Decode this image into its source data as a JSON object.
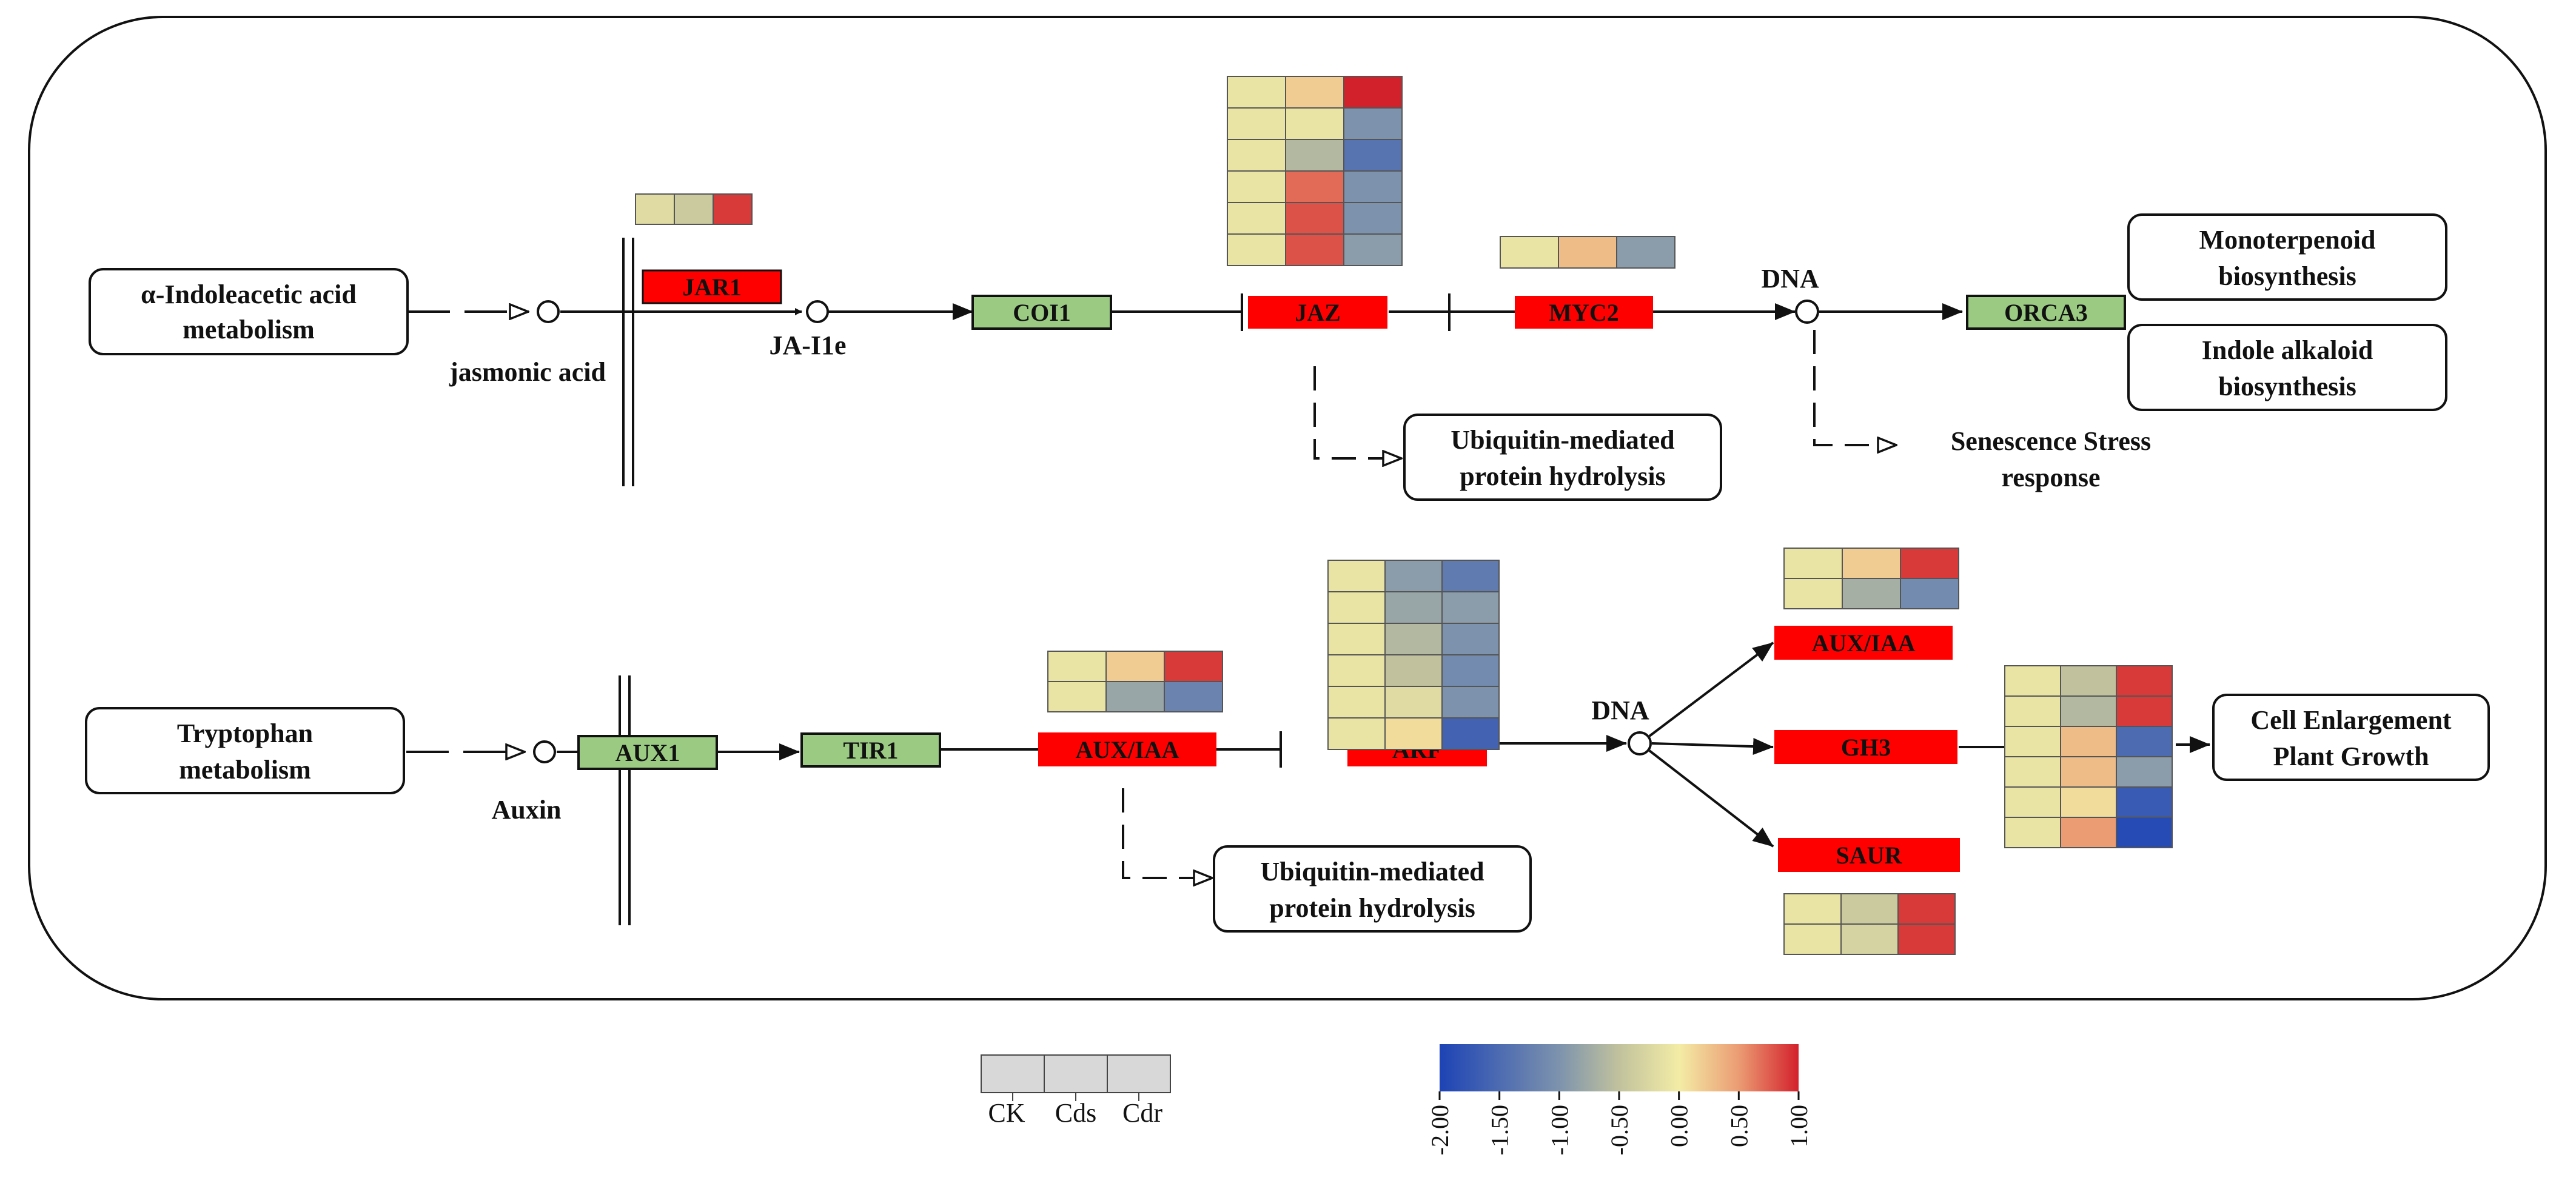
{
  "jasmonate": {
    "precursor": [
      "α-Indoleacetic acid",
      "metabolism"
    ],
    "compound_1": "jasmonic acid",
    "compound_2": "JA-I1e",
    "dna": "DNA",
    "genes": {
      "jar1": "JAR1",
      "coi1": "COI1",
      "jaz": "JAZ",
      "myc2": "MYC2",
      "orca3": "ORCA3"
    },
    "outputs": {
      "monoterpenoid": [
        "Monoterpenoid",
        "biosynthesis"
      ],
      "indole": [
        "Indole alkaloid",
        "biosynthesis"
      ],
      "ubiquitin": [
        "Ubiquitin-mediated",
        "protein hydrolysis"
      ],
      "senescence": [
        "Senescence Stress",
        "response"
      ]
    }
  },
  "auxin": {
    "precursor": [
      "Tryptophan",
      "metabolism"
    ],
    "compound": "Auxin",
    "dna": "DNA",
    "genes": {
      "aux1": "AUX1",
      "tir1": "TIR1",
      "aux_iaa": "AUX/IAA",
      "arf": "ARF",
      "aux_iaa_2": "AUX/IAA",
      "gh3": "GH3",
      "saur": "SAUR"
    },
    "outputs": {
      "ubiquitin": [
        "Ubiquitin-mediated",
        "protein hydrolysis"
      ],
      "growth": [
        "Cell Enlargement",
        "Plant Growth"
      ]
    }
  },
  "heatmaps": {
    "jar1": [
      [
        -0.2,
        -0.4,
        0.9
      ]
    ],
    "jaz": [
      [
        -0.1,
        0.2,
        1.0
      ],
      [
        -0.1,
        -0.1,
        -1.0
      ],
      [
        -0.1,
        -0.6,
        -1.4
      ],
      [
        -0.1,
        0.7,
        -1.0
      ],
      [
        -0.1,
        0.8,
        -1.0
      ],
      [
        -0.1,
        0.8,
        -0.9
      ]
    ],
    "myc2": [
      [
        -0.1,
        0.3,
        -0.9
      ]
    ],
    "aux_iaa": [
      [
        -0.1,
        0.2,
        0.9
      ],
      [
        -0.1,
        -0.8,
        -1.2
      ]
    ],
    "arf": [
      [
        -0.1,
        -0.9,
        -1.3
      ],
      [
        -0.1,
        -0.8,
        -0.9
      ],
      [
        -0.1,
        -0.6,
        -1.0
      ],
      [
        -0.1,
        -0.5,
        -1.1
      ],
      [
        -0.1,
        -0.2,
        -1.0
      ],
      [
        -0.1,
        0.1,
        -1.6
      ]
    ],
    "aux_iaa_2": [
      [
        -0.1,
        0.2,
        0.9
      ],
      [
        -0.1,
        -0.7,
        -1.1
      ]
    ],
    "gh3": [
      [
        -0.1,
        -0.5,
        0.9
      ],
      [
        -0.1,
        -0.6,
        0.9
      ],
      [
        -0.1,
        0.3,
        -1.5
      ],
      [
        -0.1,
        0.3,
        -0.9
      ],
      [
        -0.1,
        0.1,
        -1.7
      ],
      [
        -0.1,
        0.5,
        -1.9
      ]
    ],
    "saur": [
      [
        -0.1,
        -0.4,
        0.9
      ],
      [
        -0.1,
        -0.3,
        0.9
      ]
    ]
  },
  "legend": {
    "samples": [
      "CK",
      "Cds",
      "Cdr"
    ],
    "scale_ticks": [
      "-2.00",
      "-1.50",
      "-1.00",
      "-0.50",
      "0.00",
      "0.50",
      "1.00"
    ],
    "scale_min": -2,
    "scale_max": 1
  },
  "colors": {
    "upregulated_gene": "#ff0000",
    "unchanged_gene": "#9bcb83",
    "scale_low": "#2b50b4",
    "scale_mid": "#f1e9a8",
    "scale_high": "#d33a2c"
  }
}
